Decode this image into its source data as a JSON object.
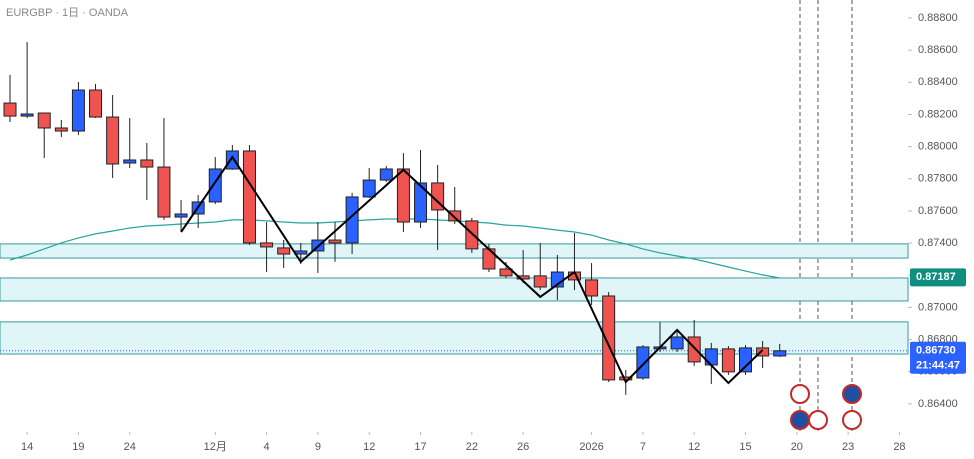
{
  "chart_data": {
    "type": "candlestick",
    "title": "EURGBP · 1日 · OANDA",
    "x": [
      0,
      1,
      2,
      3,
      4,
      5,
      6,
      7,
      8,
      9,
      10,
      11,
      12,
      13,
      14,
      15,
      16,
      17,
      18,
      19,
      20,
      21,
      22,
      23,
      24,
      25,
      26,
      27,
      28,
      29,
      30,
      31,
      32,
      33,
      34,
      35,
      36,
      37,
      38,
      39,
      40,
      41,
      42,
      43,
      44,
      45
    ],
    "open": [
      0.88271,
      0.8819,
      0.88209,
      0.88116,
      0.88097,
      0.88352,
      0.88184,
      0.87898,
      0.87917,
      0.87873,
      0.87562,
      0.87581,
      0.87656,
      0.87861,
      0.87973,
      0.87401,
      0.8737,
      0.87332,
      0.87351,
      0.87419,
      0.87401,
      0.87687,
      0.87792,
      0.87861,
      0.87531,
      0.87774,
      0.876,
      0.87538,
      0.87364,
      0.87239,
      0.87196,
      0.87196,
      0.87127,
      0.8722,
      0.87171,
      0.87071,
      0.86567,
      0.86561,
      0.86742,
      0.86742,
      0.86816,
      0.86642,
      0.86742,
      0.86599,
      0.86748,
      0.86698
    ],
    "high": [
      0.88446,
      0.88651,
      0.88209,
      0.88166,
      0.88402,
      0.8839,
      0.88321,
      0.88178,
      0.88023,
      0.88178,
      0.87668,
      0.87699,
      0.87935,
      0.8801,
      0.8801,
      0.87531,
      0.87419,
      0.87401,
      0.87531,
      0.87531,
      0.87712,
      0.87867,
      0.8788,
      0.8796,
      0.87979,
      0.87886,
      0.87749,
      0.87556,
      0.87395,
      0.87283,
      0.87357,
      0.87401,
      0.87326,
      0.87463,
      0.87276,
      0.87096,
      0.86611,
      0.86766,
      0.8691,
      0.8686,
      0.86922,
      0.86779,
      0.8676,
      0.86766,
      0.86791,
      0.86773
    ],
    "low": [
      0.88153,
      0.88178,
      0.87929,
      0.8806,
      0.88072,
      0.88178,
      0.87805,
      0.87867,
      0.87668,
      0.87544,
      0.87469,
      0.87494,
      0.87643,
      0.87855,
      0.87388,
      0.8722,
      0.87245,
      0.8727,
      0.87214,
      0.87283,
      0.87332,
      0.87681,
      0.8778,
      0.87469,
      0.87494,
      0.87357,
      0.87519,
      0.87339,
      0.8722,
      0.87183,
      0.87152,
      0.87108,
      0.87046,
      0.87108,
      0.87015,
      0.86536,
      0.86456,
      0.86549,
      0.86723,
      0.86723,
      0.86636,
      0.86524,
      0.8658,
      0.8658,
      0.86623,
      0.86692
    ],
    "close": [
      0.8819,
      0.88203,
      0.88116,
      0.88097,
      0.88352,
      0.88184,
      0.87892,
      0.87917,
      0.87873,
      0.87562,
      0.87581,
      0.87656,
      0.87861,
      0.87973,
      0.87401,
      0.87376,
      0.87332,
      0.87351,
      0.87419,
      0.87401,
      0.87687,
      0.87792,
      0.87861,
      0.87531,
      0.87774,
      0.87606,
      0.87538,
      0.87364,
      0.87239,
      0.87196,
      0.87177,
      0.87127,
      0.8722,
      0.87171,
      0.87071,
      0.86549,
      0.86549,
      0.86754,
      0.86754,
      0.86816,
      0.86661,
      0.86742,
      0.86599,
      0.86748,
      0.86698,
      0.8673
    ],
    "up_color": "#2962ff",
    "down_color": "#ef5350",
    "xlim": [
      -0.585,
      52.5
    ],
    "ylim": [
      0.86225,
      0.88912
    ],
    "yticks": [
      {
        "value": 0.888,
        "label": "0.88800"
      },
      {
        "value": 0.886,
        "label": "0.88600"
      },
      {
        "value": 0.884,
        "label": "0.88400"
      },
      {
        "value": 0.882,
        "label": "0.88200"
      },
      {
        "value": 0.88,
        "label": "0.88000"
      },
      {
        "value": 0.878,
        "label": "0.87800"
      },
      {
        "value": 0.876,
        "label": "0.87600"
      },
      {
        "value": 0.874,
        "label": "0.87400"
      },
      {
        "value": 0.872,
        "label": "0.87200"
      },
      {
        "value": 0.87,
        "label": "0.87000"
      },
      {
        "value": 0.868,
        "label": "0.86800"
      },
      {
        "value": 0.866,
        "label": "0.86600"
      },
      {
        "value": 0.864,
        "label": "0.86400"
      }
    ],
    "xticks": [
      {
        "value": 1,
        "label": "14"
      },
      {
        "value": 4,
        "label": "19"
      },
      {
        "value": 7,
        "label": "24"
      },
      {
        "value": 12,
        "label": "12月"
      },
      {
        "value": 15,
        "label": "4"
      },
      {
        "value": 18,
        "label": "9"
      },
      {
        "value": 21,
        "label": "12"
      },
      {
        "value": 24,
        "label": "17"
      },
      {
        "value": 27,
        "label": "22"
      },
      {
        "value": 30,
        "label": "26"
      },
      {
        "value": 34,
        "label": "2026"
      },
      {
        "value": 37,
        "label": "7"
      },
      {
        "value": 40,
        "label": "12"
      },
      {
        "value": 43,
        "label": "15"
      },
      {
        "value": 46,
        "label": "20"
      },
      {
        "value": 49,
        "label": "23"
      },
      {
        "value": 52,
        "label": "28"
      }
    ],
    "ma": {
      "color": "#26a69a",
      "values": [
        0.87295,
        0.87326,
        0.87364,
        0.87401,
        0.87432,
        0.87457,
        0.87475,
        0.87494,
        0.87506,
        0.87512,
        0.87519,
        0.87525,
        0.87531,
        0.87544,
        0.87544,
        0.87538,
        0.87531,
        0.87525,
        0.87525,
        0.87531,
        0.87538,
        0.87544,
        0.8755,
        0.8755,
        0.8755,
        0.87544,
        0.87538,
        0.87531,
        0.87525,
        0.87512,
        0.87506,
        0.87494,
        0.87481,
        0.87469,
        0.8745,
        0.87419,
        0.87395,
        0.87364,
        0.87339,
        0.8732,
        0.87301,
        0.87276,
        0.87251,
        0.87226,
        0.87202,
        0.87183
      ]
    },
    "zigzag": {
      "color": "#000000",
      "x": [
        10,
        13,
        17,
        23,
        31,
        33,
        36,
        39,
        42,
        44
      ],
      "values": [
        0.87469,
        0.87935,
        0.87283,
        0.87855,
        0.87065,
        0.8722,
        0.86536,
        0.8686,
        0.8653,
        0.86735
      ]
    },
    "zones": [
      [
        0.87395,
        0.87307
      ],
      [
        0.87183,
        0.8704
      ],
      [
        0.8691,
        0.8671
      ]
    ],
    "zone_color": "#dff5f7",
    "zone_border": "#3a9a9a",
    "price_labels": [
      {
        "value": 0.87187,
        "label": "0.87187",
        "color": "#0f8f7f"
      },
      {
        "value": 0.8673,
        "label": "0.86730",
        "countdown": "21:44:47",
        "color": "#2962ff"
      }
    ]
  }
}
